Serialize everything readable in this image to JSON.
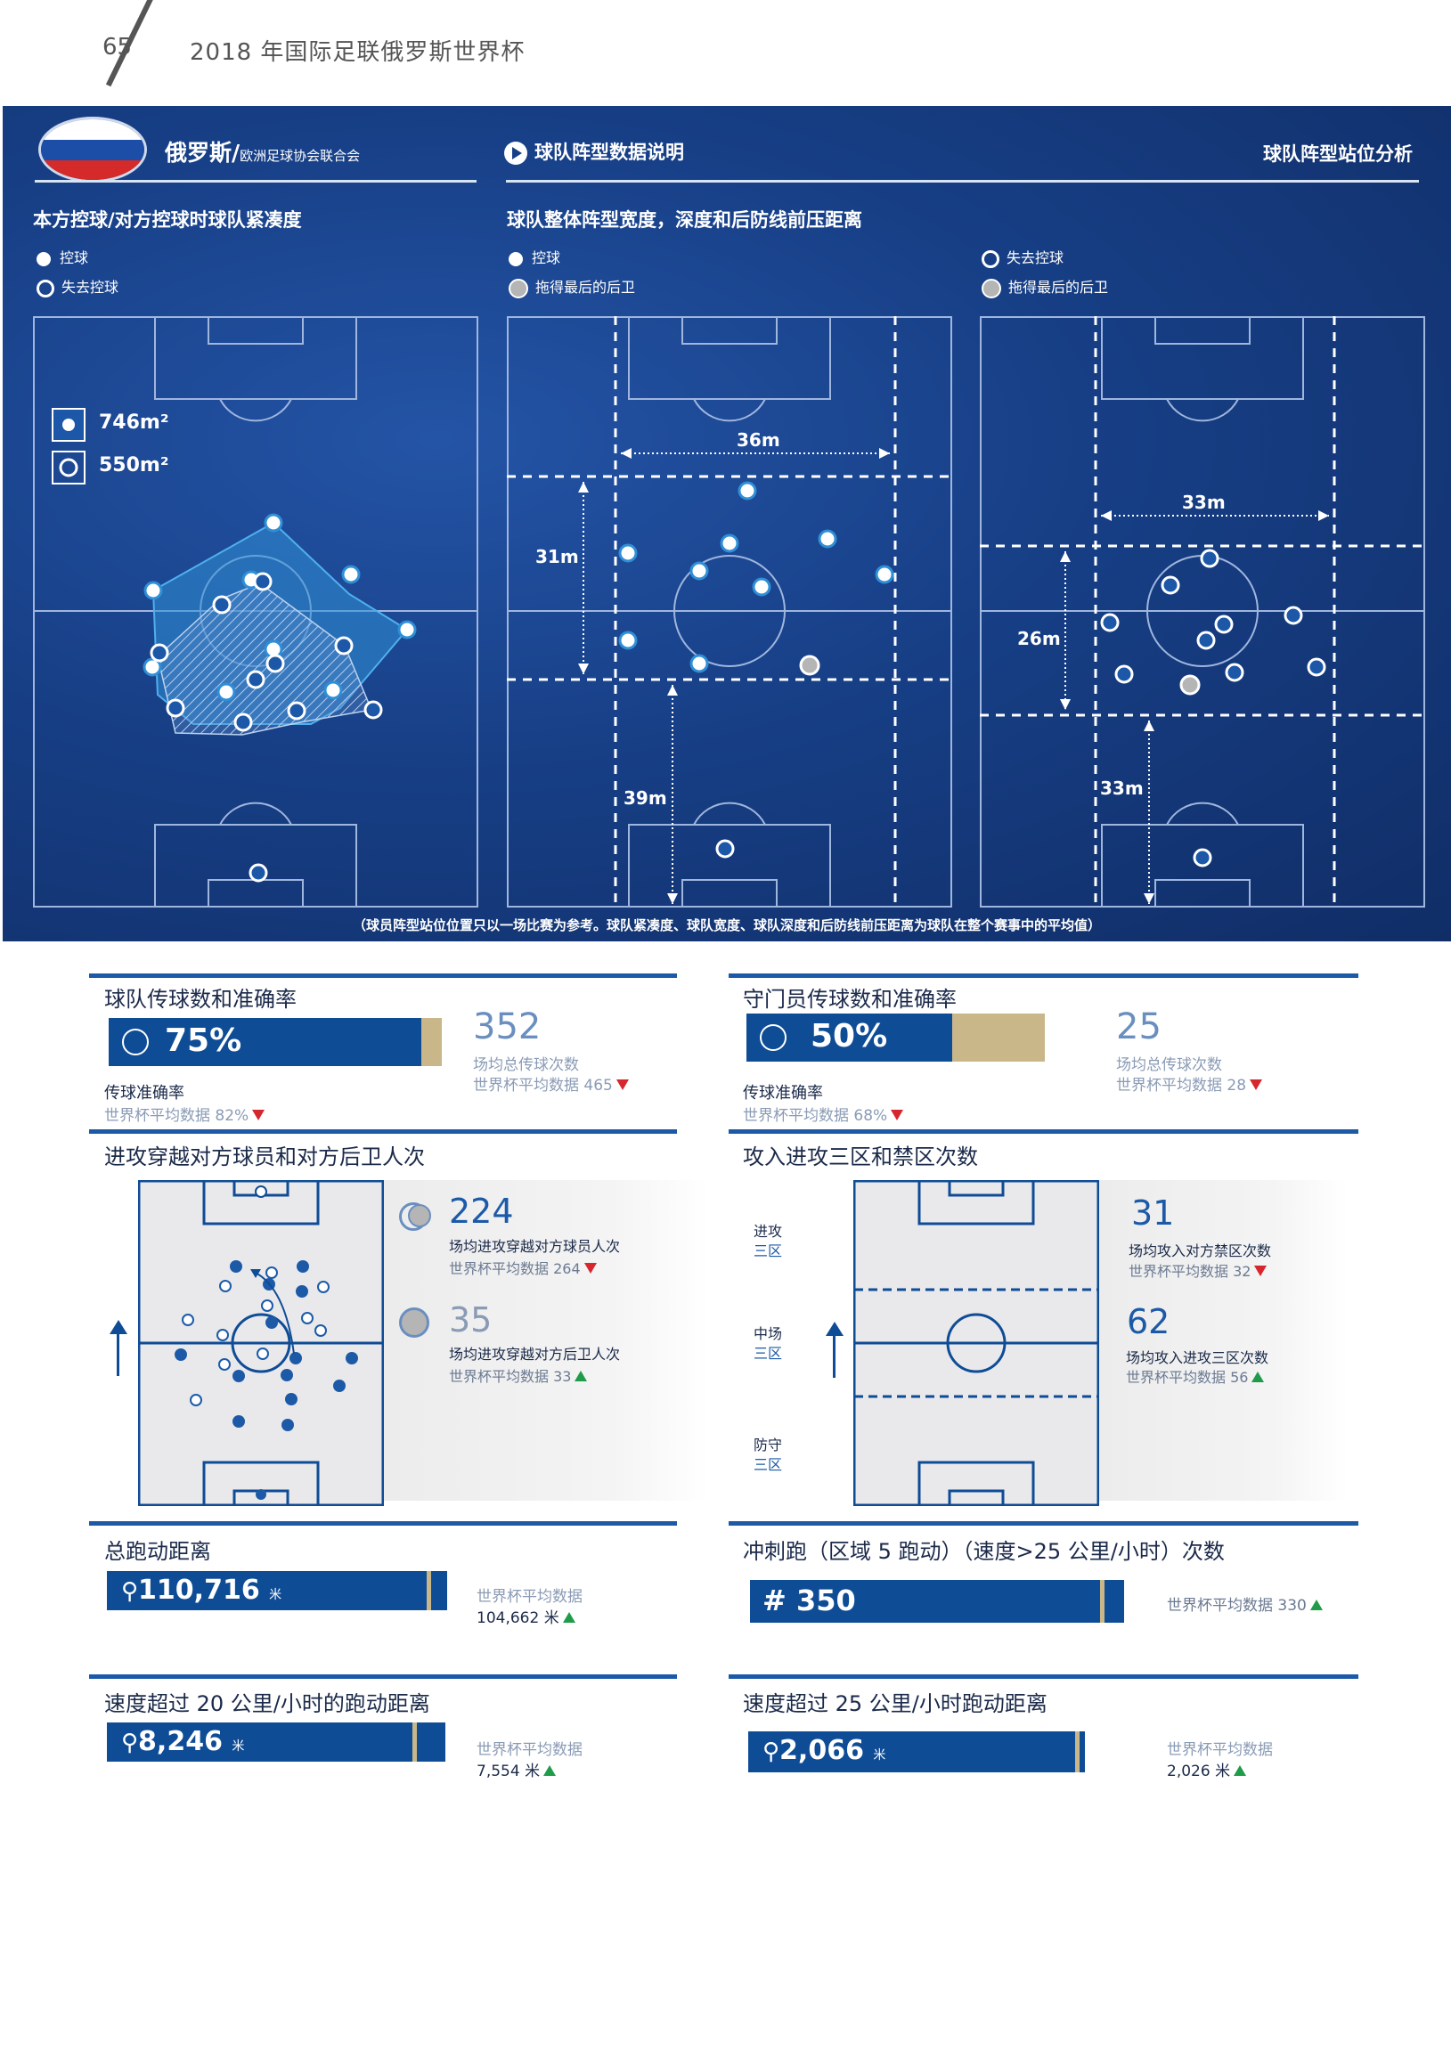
{
  "header": {
    "page_number": "65",
    "title": "2018 年国际足联俄罗斯世界杯"
  },
  "panel": {
    "team_name": "俄罗斯/",
    "team_confed": "欧洲足球协会联合会",
    "formation_link": "球队阵型数据说明",
    "section_right": "球队阵型站位分析",
    "compactness_title": "本方控球/对方控球时球队紧凑度",
    "legend_in_possession": "控球",
    "legend_out_possession": "失去控球",
    "width_title": "球队整体阵型宽度，深度和后防线前压距离",
    "legend_last_defender": "拖得最后的后卫",
    "area_in": "746m²",
    "area_out": "550m²",
    "in_width": "36m",
    "in_depth": "31m",
    "in_line": "39m",
    "out_width": "33m",
    "out_depth": "26m",
    "out_line": "33m",
    "footnote": "（球员阵型站位位置只以一场比赛为参考。球队紧凑度、球队宽度、球队深度和后防线前压距离为球队在整个赛事中的平均值）"
  },
  "team_pass": {
    "title": "球队传球数和准确率",
    "pct": "75%",
    "pct_value": 0.75,
    "acc_label": "传球准确率",
    "acc_avg": "世界杯平均数据  82%",
    "total": "352",
    "total_label": "场均总传球次数",
    "total_avg": "世界杯平均数据  465"
  },
  "gk_pass": {
    "title": "守门员传球数和准确率",
    "pct": "50%",
    "pct_value": 0.5,
    "acc_label": "传球准确率",
    "acc_avg": "世界杯平均数据  68%",
    "total": "25",
    "total_label": "场均总传球次数",
    "total_avg": "世界杯平均数据  28"
  },
  "penetration": {
    "title": "进攻穿越对方球员和对方后卫人次",
    "players_num": "224",
    "players_label": "场均进攻穿越对方球员人次",
    "players_avg": "世界杯平均数据 264",
    "defenders_num": "35",
    "defenders_label": "场均进攻穿越对方后卫人次",
    "defenders_avg": "世界杯平均数据 33"
  },
  "entries": {
    "title": "攻入进攻三区和禁区次数",
    "zone_attack_1": "进攻",
    "zone_attack_2": "三区",
    "zone_mid_1": "中场",
    "zone_mid_2": "三区",
    "zone_def_1": "防守",
    "zone_def_2": "三区",
    "box_num": "31",
    "box_label": "场均攻入对方禁区次数",
    "box_avg": "世界杯平均数据 32",
    "third_num": "62",
    "third_label": "场均攻入进攻三区次数",
    "third_avg": "世界杯平均数据 56"
  },
  "total_distance": {
    "title": "总跑动距离",
    "value": "110,716",
    "unit": "米",
    "avg_label": "世界杯平均数据",
    "avg_value": "104,662 米"
  },
  "sprints": {
    "title": "冲刺跑（区域 5 跑动）（速度>25 公里/小时）次数",
    "value": "# 350",
    "avg": "世界杯平均数据 330"
  },
  "dist20": {
    "title": "速度超过 20 公里/小时的跑动距离",
    "value": "8,246",
    "unit": "米",
    "avg_label": "世界杯平均数据",
    "avg_value": "7,554 米"
  },
  "dist25": {
    "title": "速度超过 25 公里/小时跑动距离",
    "value": "2,066",
    "unit": "米",
    "avg_label": "世界杯平均数据",
    "avg_value": "2,026 米"
  },
  "colors": {
    "panel_blue": "#173f86",
    "bar_blue": "#0f4c96",
    "bar_gold": "#c9b789",
    "up_green": "#1f9b4a",
    "down_red": "#d6262e"
  }
}
